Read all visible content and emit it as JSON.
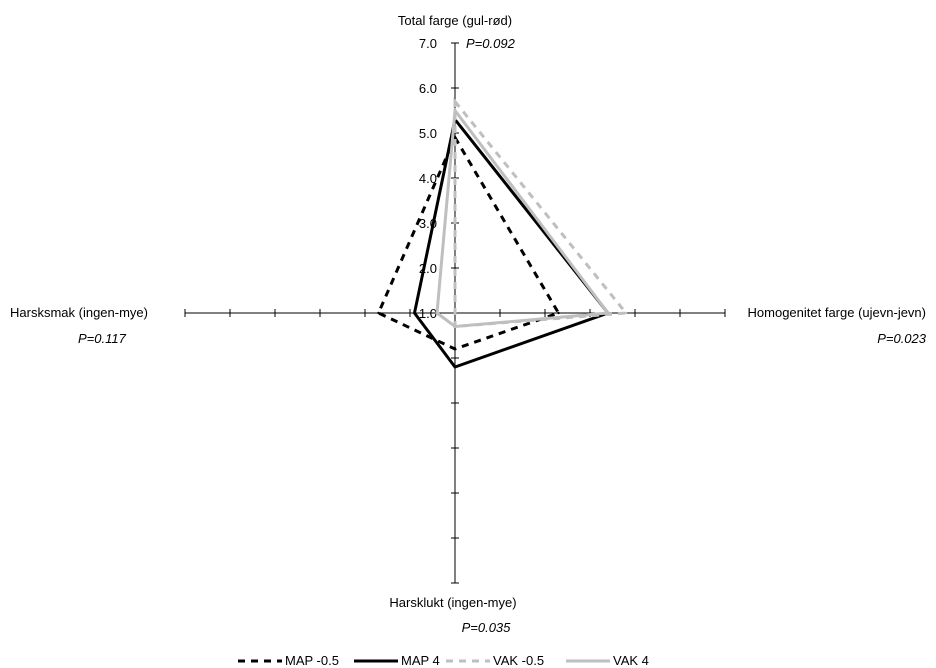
{
  "chart_data": {
    "type": "radar",
    "axes": [
      {
        "label": "Total farge (gul-rød)",
        "p_value": "P=0.092"
      },
      {
        "label": "Homogenitet farge (ujevn-jevn)",
        "p_value": "P=0.023"
      },
      {
        "label": "Harsklukt (ingen-mye)",
        "p_value": "P=0.035"
      },
      {
        "label": "Harsksmak (ingen-mye)",
        "p_value": "P=0.117"
      }
    ],
    "scale": {
      "min": 1.0,
      "max": 7.0,
      "step": 1.0
    },
    "tick_labels": [
      "1.0",
      "2.0",
      "3.0",
      "4.0",
      "5.0",
      "6.0",
      "7.0"
    ],
    "series": [
      {
        "name": "MAP -0.5",
        "values": [
          4.9,
          3.3,
          1.8,
          2.7
        ],
        "color": "#000000",
        "style": "dashed"
      },
      {
        "name": "MAP 4",
        "values": [
          5.3,
          4.4,
          2.2,
          1.9
        ],
        "color": "#000000",
        "style": "solid"
      },
      {
        "name": "VAK -0.5",
        "values": [
          5.7,
          4.8,
          1.3,
          1.0
        ],
        "color": "#bfbfbf",
        "style": "dashed"
      },
      {
        "name": "VAK 4",
        "values": [
          5.5,
          4.4,
          1.3,
          1.4
        ],
        "color": "#bfbfbf",
        "style": "solid"
      }
    ],
    "legend_position": "bottom"
  }
}
